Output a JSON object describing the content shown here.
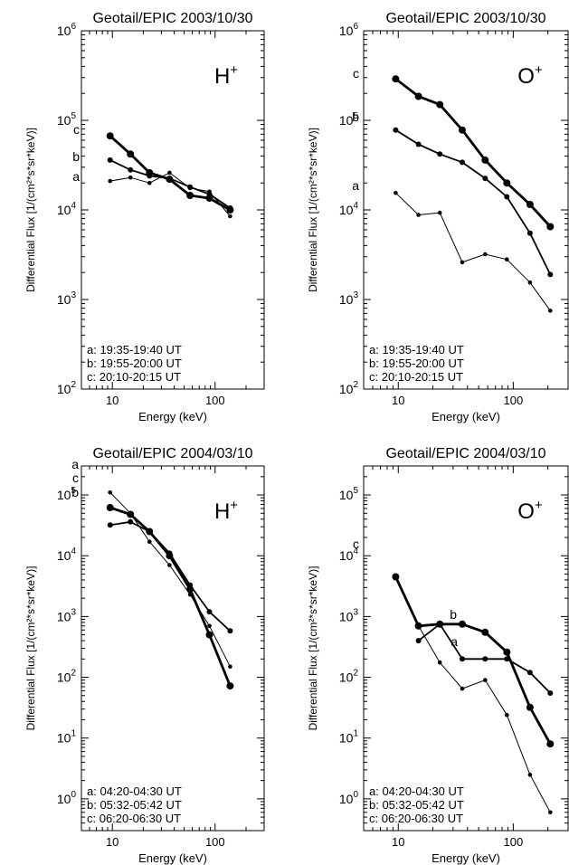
{
  "chart_data": [
    {
      "type": "line",
      "title": "Geotail/EPIC  2003/10/30",
      "species_base": "H",
      "species_sup": "+",
      "xlabel": "Energy (keV)",
      "ylabel": "Differential Flux  [1/(cm²*s*sr*keV)]",
      "xscale": "log",
      "yscale": "log",
      "xlim": [
        5,
        300
      ],
      "ylim": [
        100,
        1000000
      ],
      "x_ticks": [
        {
          "v": 10,
          "label": "10"
        },
        {
          "v": 100,
          "label": "100"
        }
      ],
      "y_ticks": [
        {
          "exp": 2
        },
        {
          "exp": 3
        },
        {
          "exp": 4
        },
        {
          "exp": 5
        },
        {
          "exp": 6
        }
      ],
      "series": [
        {
          "name": "a",
          "x": [
            9.5,
            15,
            23,
            36,
            57,
            88,
            140
          ],
          "y": [
            21000,
            23000,
            20000,
            26000,
            17500,
            16000,
            8500
          ]
        },
        {
          "name": "b",
          "x": [
            9.5,
            15,
            23,
            36,
            57,
            88,
            140
          ],
          "y": [
            36000,
            28000,
            24000,
            22500,
            18000,
            15000,
            10500
          ]
        },
        {
          "name": "c",
          "x": [
            9.5,
            15,
            23,
            36,
            57,
            88,
            140
          ],
          "y": [
            67000,
            42000,
            26000,
            22000,
            14500,
            13500,
            10000
          ]
        }
      ],
      "legend": [
        "a: 19:35-19:40 UT",
        "b: 19:55-20:00 UT",
        "c: 20:10-20:15 UT"
      ]
    },
    {
      "type": "line",
      "title": "Geotail/EPIC  2003/10/30",
      "species_base": "O",
      "species_sup": "+",
      "xlabel": "Energy (keV)",
      "ylabel": "Differential Flux  [1/(cm²*s*sr*keV)]",
      "xscale": "log",
      "yscale": "log",
      "xlim": [
        5,
        300
      ],
      "ylim": [
        100,
        1000000
      ],
      "x_ticks": [
        {
          "v": 10,
          "label": "10"
        },
        {
          "v": 100,
          "label": "100"
        }
      ],
      "y_ticks": [
        {
          "exp": 2
        },
        {
          "exp": 3
        },
        {
          "exp": 4
        },
        {
          "exp": 5
        },
        {
          "exp": 6
        }
      ],
      "series": [
        {
          "name": "a",
          "x": [
            9.5,
            15,
            23,
            36,
            57,
            88,
            140,
            210
          ],
          "y": [
            15500,
            8800,
            9300,
            2600,
            3200,
            2800,
            1550,
            750
          ]
        },
        {
          "name": "b",
          "x": [
            9.5,
            15,
            23,
            36,
            57,
            88,
            140,
            210
          ],
          "y": [
            78000,
            54000,
            42000,
            34000,
            22500,
            14000,
            5500,
            1900
          ]
        },
        {
          "name": "c",
          "x": [
            9.5,
            15,
            23,
            36,
            57,
            88,
            140,
            210
          ],
          "y": [
            290000,
            185000,
            150000,
            78000,
            36000,
            20000,
            11500,
            6500
          ]
        }
      ],
      "legend": [
        "a: 19:35-19:40 UT",
        "b: 19:55-20:00 UT",
        "c: 20:10-20:15 UT"
      ]
    },
    {
      "type": "line",
      "title": "Geotail/EPIC  2004/03/10",
      "species_base": "H",
      "species_sup": "+",
      "xlabel": "Energy (keV)",
      "ylabel": "Differential Flux  [1/(cm²*s*sr*keV)]",
      "xscale": "log",
      "yscale": "log",
      "xlim": [
        5,
        300
      ],
      "ylim": [
        0.3,
        300000
      ],
      "x_ticks": [
        {
          "v": 10,
          "label": "10"
        },
        {
          "v": 100,
          "label": "100"
        }
      ],
      "y_ticks": [
        {
          "exp": 0
        },
        {
          "exp": 1
        },
        {
          "exp": 2
        },
        {
          "exp": 3
        },
        {
          "exp": 4
        },
        {
          "exp": 5
        }
      ],
      "series": [
        {
          "name": "a",
          "x": [
            9.5,
            15,
            23,
            36,
            57,
            88,
            140
          ],
          "y": [
            110000,
            50000,
            17000,
            7000,
            2300,
            700,
            150
          ]
        },
        {
          "name": "b",
          "x": [
            9.5,
            15,
            23,
            36,
            57,
            88,
            140
          ],
          "y": [
            32000,
            36000,
            25000,
            11000,
            3300,
            1200,
            580
          ]
        },
        {
          "name": "c",
          "x": [
            9.5,
            15,
            23,
            36,
            57,
            88,
            140
          ],
          "y": [
            62000,
            48000,
            25000,
            10000,
            2800,
            500,
            72
          ]
        }
      ],
      "legend": [
        "a: 04:20-04:30 UT",
        "b: 05:32-05:42 UT",
        "c: 06:20-06:30 UT"
      ]
    },
    {
      "type": "line",
      "title": "Geotail/EPIC  2004/03/10",
      "species_base": "O",
      "species_sup": "+",
      "xlabel": "Energy (keV)",
      "ylabel": "Differential Flux  [1/(cm²*s*sr*keV)]",
      "xscale": "log",
      "yscale": "log",
      "xlim": [
        5,
        300
      ],
      "ylim": [
        0.3,
        300000
      ],
      "x_ticks": [
        {
          "v": 10,
          "label": "10"
        },
        {
          "v": 100,
          "label": "100"
        }
      ],
      "y_ticks": [
        {
          "exp": 0
        },
        {
          "exp": 1
        },
        {
          "exp": 2
        },
        {
          "exp": 3
        },
        {
          "exp": 4
        },
        {
          "exp": 5
        }
      ],
      "series": [
        {
          "name": "a",
          "x": [
            15,
            23,
            36,
            57,
            88,
            140,
            210
          ],
          "y": [
            700,
            175,
            65,
            90,
            24,
            2.5,
            0.6
          ]
        },
        {
          "name": "b",
          "x": [
            15,
            23,
            36,
            57,
            88,
            140,
            210
          ],
          "y": [
            400,
            750,
            200,
            200,
            200,
            120,
            55
          ]
        },
        {
          "name": "c",
          "x": [
            9.5,
            15,
            23,
            36,
            57,
            88,
            140,
            210
          ],
          "y": [
            4500,
            700,
            750,
            750,
            550,
            260,
            32,
            8
          ]
        }
      ],
      "legend": [
        "a: 04:20-04:30 UT",
        "b: 05:32-05:42 UT",
        "c: 06:20-06:30 UT"
      ]
    }
  ]
}
